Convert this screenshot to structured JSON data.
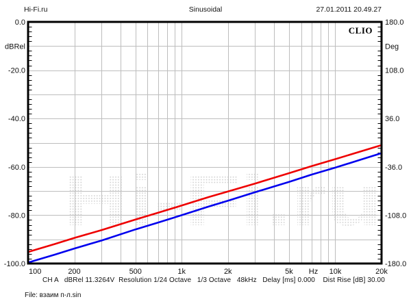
{
  "header": {
    "left": "Hi-Fi.ru",
    "center": "Sinusoidal",
    "right": "27.01.2011 20.49.27"
  },
  "brand": "CLIO",
  "watermark": "Hi-Fi.ru",
  "footer": {
    "info_line": "CH A   dBRel 11.3264V  Resolution 1/24 Octave   1/3 Octave   48kHz   Delay [ms] 0.000    Dist Rise [dB] 30.00",
    "file_line": "File: взаим п-л.sin"
  },
  "axes": {
    "left": {
      "unit": "dBRel",
      "ticks": [
        {
          "v": 0,
          "label": "0.0"
        },
        {
          "v": -20,
          "label": "-20.0"
        },
        {
          "v": -40,
          "label": "-40.0"
        },
        {
          "v": -60,
          "label": "-60.0"
        },
        {
          "v": -80,
          "label": "-80.0"
        },
        {
          "v": -100,
          "label": "-100.0"
        }
      ]
    },
    "right": {
      "unit": "Deg",
      "ticks": [
        {
          "v": 180,
          "label": "180.0"
        },
        {
          "v": 108,
          "label": "108.0"
        },
        {
          "v": 36,
          "label": "36.0"
        },
        {
          "v": -36,
          "label": "-36.0"
        },
        {
          "v": -108,
          "label": "-108.0"
        },
        {
          "v": -180,
          "label": "-180.0"
        }
      ]
    },
    "bottom": {
      "unit": "Hz",
      "unit_pos_hz": 7200,
      "ticks": [
        {
          "f": 100,
          "label": "100"
        },
        {
          "f": 200,
          "label": "200"
        },
        {
          "f": 500,
          "label": "500"
        },
        {
          "f": 1000,
          "label": "1k"
        },
        {
          "f": 2000,
          "label": "2k"
        },
        {
          "f": 5000,
          "label": "5k"
        },
        {
          "f": 10000,
          "label": "10k"
        },
        {
          "f": 20000,
          "label": "20k"
        }
      ]
    }
  },
  "chart_data": {
    "type": "line",
    "title": "Sinusoidal",
    "x_scale": "log",
    "xlabel": "Hz",
    "ylabel_left": "dBRel",
    "ylabel_right": "Deg",
    "xlim": [
      100,
      20000
    ],
    "ylim_left": [
      -100,
      0
    ],
    "ylim_right": [
      -180,
      180
    ],
    "grid": true,
    "legend": false,
    "x": [
      100,
      150,
      200,
      300,
      500,
      700,
      1000,
      1500,
      2000,
      3000,
      5000,
      7000,
      10000,
      15000,
      20000
    ],
    "series": [
      {
        "name": "upper-red",
        "color": "#ee0000",
        "values": [
          -95.2,
          -91.9,
          -89.4,
          -86.2,
          -81.8,
          -79.0,
          -76.0,
          -72.5,
          -70.2,
          -66.9,
          -62.6,
          -59.7,
          -56.8,
          -53.4,
          -51.0
        ]
      },
      {
        "name": "lower-blue",
        "color": "#0000ee",
        "values": [
          -99.6,
          -96.3,
          -93.8,
          -90.5,
          -85.9,
          -83.1,
          -80.0,
          -76.4,
          -74.0,
          -70.5,
          -66.2,
          -63.2,
          -60.3,
          -56.8,
          -54.3
        ]
      }
    ]
  },
  "colors": {
    "grid": "#bdbdbd",
    "border": "#000000",
    "watermark": "#d2d2d2",
    "text": "#111111"
  }
}
